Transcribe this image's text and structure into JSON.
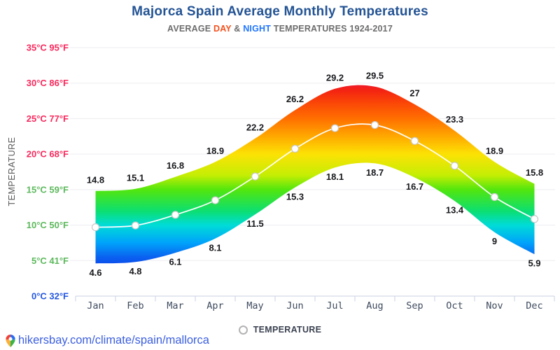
{
  "header": {
    "title": "Majorca Spain Average Monthly Temperatures",
    "subtitle": {
      "prefix": "AVERAGE ",
      "day_word": "DAY",
      "amp": " & ",
      "night_word": "NIGHT",
      "suffix": " TEMPERATURES 1924-2017",
      "day_color": "#f4511e",
      "night_color": "#2176ff",
      "text_color": "#6d6d6d"
    }
  },
  "y_axis": {
    "title": "TEMPERATURE",
    "ticks": [
      {
        "label": "35°C 95°F",
        "temp_c": 35,
        "color": "#f8295d"
      },
      {
        "label": "30°C 86°F",
        "temp_c": 30,
        "color": "#f8295d"
      },
      {
        "label": "25°C 77°F",
        "temp_c": 25,
        "color": "#f8295d"
      },
      {
        "label": "20°C 68°F",
        "temp_c": 20,
        "color": "#f8295d"
      },
      {
        "label": "15°C 59°F",
        "temp_c": 15,
        "color": "#5cb85c"
      },
      {
        "label": "10°C 50°F",
        "temp_c": 10,
        "color": "#5cb85c"
      },
      {
        "label": "5°C 41°F",
        "temp_c": 5,
        "color": "#5cb85c"
      },
      {
        "label": "0°C 32°F",
        "temp_c": 0,
        "color": "#2356e0"
      }
    ]
  },
  "legend": {
    "label": "TEMPERATURE"
  },
  "footer": {
    "url": "hikersbay.com/climate/spain/mallorca",
    "link_color": "#3b5fe0"
  },
  "chart_data": {
    "type": "area",
    "title": "Majorca Spain Average Monthly Temperatures",
    "subtitle": "AVERAGE DAY & NIGHT TEMPERATURES 1924-2017",
    "categories": [
      "Jan",
      "Feb",
      "Mar",
      "Apr",
      "May",
      "Jun",
      "Jul",
      "Aug",
      "Sep",
      "Oct",
      "Nov",
      "Dec"
    ],
    "series": [
      {
        "name": "Day temperature (°C, band top edge, labeled)",
        "values": [
          14.8,
          15.1,
          16.8,
          18.9,
          22.2,
          26.2,
          29.2,
          29.5,
          27,
          23.3,
          18.9,
          15.8
        ]
      },
      {
        "name": "Night temperature (°C, band bottom edge, labeled)",
        "values": [
          4.6,
          4.8,
          6.1,
          8.1,
          11.5,
          15.3,
          18.1,
          18.7,
          16.7,
          13.4,
          9,
          5.9
        ]
      },
      {
        "name": "Mean temperature (white marker line, unlabeled)",
        "values": [
          9.7,
          9.95,
          11.45,
          13.5,
          16.85,
          20.75,
          23.65,
          24.1,
          21.85,
          18.35,
          13.95,
          10.85
        ]
      }
    ],
    "ylim": [
      0,
      35
    ],
    "y_unit": "°C / °F",
    "grid": true,
    "legend_position": "bottom",
    "label_color": "#17181c",
    "grid_color": "#ededf2",
    "axis_color": "#c9d2e2",
    "month_label_color": "#3e4b5e",
    "line_color": "#ffffff",
    "temperature_color_scale": [
      {
        "t": 31,
        "color": "#e60d4e"
      },
      {
        "t": 29,
        "color": "#f42312"
      },
      {
        "t": 27,
        "color": "#fb4a06"
      },
      {
        "t": 25,
        "color": "#ff6f00"
      },
      {
        "t": 22,
        "color": "#ffb400"
      },
      {
        "t": 20,
        "color": "#fce205"
      },
      {
        "t": 17,
        "color": "#c4ee04"
      },
      {
        "t": 15,
        "color": "#52e60d"
      },
      {
        "t": 12,
        "color": "#0cdf70"
      },
      {
        "t": 10,
        "color": "#00dcd8"
      },
      {
        "t": 7.5,
        "color": "#00a2fa"
      },
      {
        "t": 5.5,
        "color": "#0a62f0"
      },
      {
        "t": 3.5,
        "color": "#0d38e8"
      }
    ]
  }
}
